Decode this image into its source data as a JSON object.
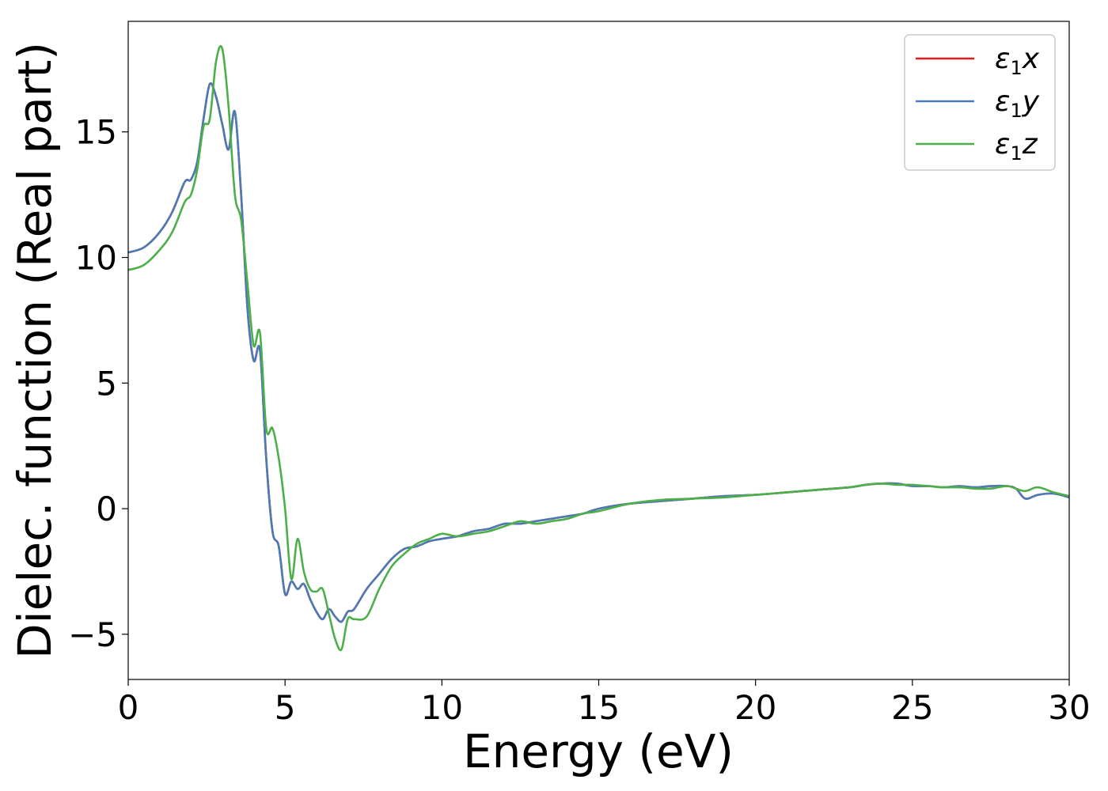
{
  "chart_data": {
    "type": "line",
    "xlabel": "Energy (eV)",
    "ylabel": "Dielec. function (Real part)",
    "xlim": [
      0,
      30
    ],
    "ylim": [
      -6.8,
      19.4
    ],
    "xticks": [
      0,
      5,
      10,
      15,
      20,
      25,
      30
    ],
    "xtick_labels": [
      "0",
      "5",
      "10",
      "15",
      "20",
      "25",
      "30"
    ],
    "yticks": [
      -5,
      0,
      5,
      10,
      15
    ],
    "ytick_labels": [
      "−5",
      "0",
      "5",
      "10",
      "15"
    ],
    "grid": false,
    "legend_position": "top-right",
    "series": [
      {
        "name": "ε₁x",
        "legend_base": "ε",
        "legend_sub": "1",
        "legend_var": "x",
        "color": "#e41a1c",
        "x": [
          0,
          0.5,
          1.0,
          1.4,
          1.8,
          2.0,
          2.2,
          2.4,
          2.6,
          2.8,
          3.0,
          3.2,
          3.4,
          3.6,
          3.8,
          4.0,
          4.2,
          4.4,
          4.6,
          4.8,
          5.0,
          5.2,
          5.4,
          5.6,
          5.8,
          6.0,
          6.2,
          6.4,
          6.6,
          6.8,
          7.0,
          7.2,
          7.6,
          8.0,
          8.4,
          8.8,
          9.2,
          9.6,
          10,
          10.5,
          11,
          11.5,
          12,
          12.5,
          13,
          13.5,
          14,
          14.5,
          15,
          16,
          17,
          18,
          19,
          20,
          21,
          22,
          23,
          23.5,
          24,
          24.5,
          25,
          25.5,
          26,
          26.5,
          27,
          27.5,
          28,
          28.3,
          28.6,
          29,
          29.5,
          30
        ],
        "y": [
          10.2,
          10.4,
          11.0,
          11.8,
          13.0,
          13.1,
          13.8,
          15.5,
          16.9,
          16.4,
          15.3,
          14.3,
          15.8,
          12.5,
          8.0,
          5.9,
          6.3,
          2.0,
          -0.9,
          -1.5,
          -3.4,
          -2.9,
          -3.2,
          -3.0,
          -3.6,
          -4.1,
          -4.4,
          -4.0,
          -4.3,
          -4.5,
          -4.1,
          -4.0,
          -3.2,
          -2.6,
          -2.0,
          -1.6,
          -1.5,
          -1.3,
          -1.2,
          -1.1,
          -0.9,
          -0.8,
          -0.6,
          -0.6,
          -0.5,
          -0.4,
          -0.3,
          -0.2,
          0.0,
          0.2,
          0.3,
          0.4,
          0.5,
          0.55,
          0.65,
          0.75,
          0.85,
          0.95,
          1.0,
          1.0,
          0.9,
          0.9,
          0.85,
          0.9,
          0.85,
          0.9,
          0.9,
          0.8,
          0.4,
          0.55,
          0.6,
          0.45
        ]
      },
      {
        "name": "ε₁y",
        "legend_base": "ε",
        "legend_sub": "1",
        "legend_var": "y",
        "color": "#4a7bb7",
        "x": [
          0,
          0.5,
          1.0,
          1.4,
          1.8,
          2.0,
          2.2,
          2.4,
          2.6,
          2.8,
          3.0,
          3.2,
          3.4,
          3.6,
          3.8,
          4.0,
          4.2,
          4.4,
          4.6,
          4.8,
          5.0,
          5.2,
          5.4,
          5.6,
          5.8,
          6.0,
          6.2,
          6.4,
          6.6,
          6.8,
          7.0,
          7.2,
          7.6,
          8.0,
          8.4,
          8.8,
          9.2,
          9.6,
          10,
          10.5,
          11,
          11.5,
          12,
          12.5,
          13,
          13.5,
          14,
          14.5,
          15,
          16,
          17,
          18,
          19,
          20,
          21,
          22,
          23,
          23.5,
          24,
          24.5,
          25,
          25.5,
          26,
          26.5,
          27,
          27.5,
          28,
          28.3,
          28.6,
          29,
          29.5,
          30
        ],
        "y": [
          10.2,
          10.4,
          11.0,
          11.8,
          13.0,
          13.1,
          13.8,
          15.5,
          16.9,
          16.4,
          15.3,
          14.3,
          15.8,
          12.5,
          8.0,
          5.9,
          6.3,
          2.0,
          -0.9,
          -1.5,
          -3.4,
          -2.9,
          -3.2,
          -3.0,
          -3.6,
          -4.1,
          -4.4,
          -4.0,
          -4.3,
          -4.5,
          -4.1,
          -4.0,
          -3.2,
          -2.6,
          -2.0,
          -1.6,
          -1.5,
          -1.3,
          -1.2,
          -1.1,
          -0.9,
          -0.8,
          -0.6,
          -0.6,
          -0.5,
          -0.4,
          -0.3,
          -0.2,
          0.0,
          0.2,
          0.3,
          0.4,
          0.5,
          0.55,
          0.65,
          0.75,
          0.85,
          0.95,
          1.0,
          1.0,
          0.9,
          0.9,
          0.85,
          0.9,
          0.85,
          0.9,
          0.9,
          0.8,
          0.4,
          0.55,
          0.6,
          0.45
        ]
      },
      {
        "name": "ε₁z",
        "legend_base": "ε",
        "legend_sub": "1",
        "legend_var": "z",
        "color": "#4daf4a",
        "x": [
          0,
          0.5,
          1.0,
          1.4,
          1.8,
          2.0,
          2.2,
          2.4,
          2.6,
          2.8,
          3.0,
          3.2,
          3.4,
          3.6,
          3.8,
          4.0,
          4.2,
          4.4,
          4.6,
          4.8,
          5.0,
          5.2,
          5.4,
          5.6,
          5.8,
          6.0,
          6.2,
          6.4,
          6.6,
          6.8,
          7.0,
          7.2,
          7.6,
          8.0,
          8.4,
          8.8,
          9.2,
          9.6,
          10,
          10.5,
          11,
          11.5,
          12,
          12.5,
          13,
          13.5,
          14,
          14.5,
          15,
          16,
          17,
          18,
          19,
          20,
          21,
          22,
          23,
          23.5,
          24,
          24.5,
          25,
          25.5,
          26,
          26.5,
          27,
          27.5,
          28,
          28.3,
          28.6,
          29,
          29.5,
          30
        ],
        "y": [
          9.5,
          9.7,
          10.3,
          11.0,
          12.2,
          12.5,
          13.5,
          15.2,
          15.5,
          17.8,
          18.3,
          16.0,
          12.5,
          11.5,
          9.0,
          6.5,
          7.0,
          3.2,
          3.2,
          2.0,
          0.0,
          -2.8,
          -1.2,
          -2.5,
          -3.2,
          -3.3,
          -3.2,
          -4.2,
          -5.2,
          -5.6,
          -4.4,
          -4.4,
          -4.3,
          -3.2,
          -2.3,
          -1.8,
          -1.4,
          -1.2,
          -1.0,
          -1.1,
          -1.0,
          -0.9,
          -0.7,
          -0.5,
          -0.6,
          -0.5,
          -0.4,
          -0.2,
          -0.1,
          0.2,
          0.35,
          0.4,
          0.45,
          0.55,
          0.65,
          0.75,
          0.85,
          0.95,
          1.0,
          0.95,
          0.95,
          0.9,
          0.85,
          0.85,
          0.8,
          0.8,
          0.9,
          0.8,
          0.7,
          0.85,
          0.65,
          0.5
        ]
      }
    ]
  }
}
